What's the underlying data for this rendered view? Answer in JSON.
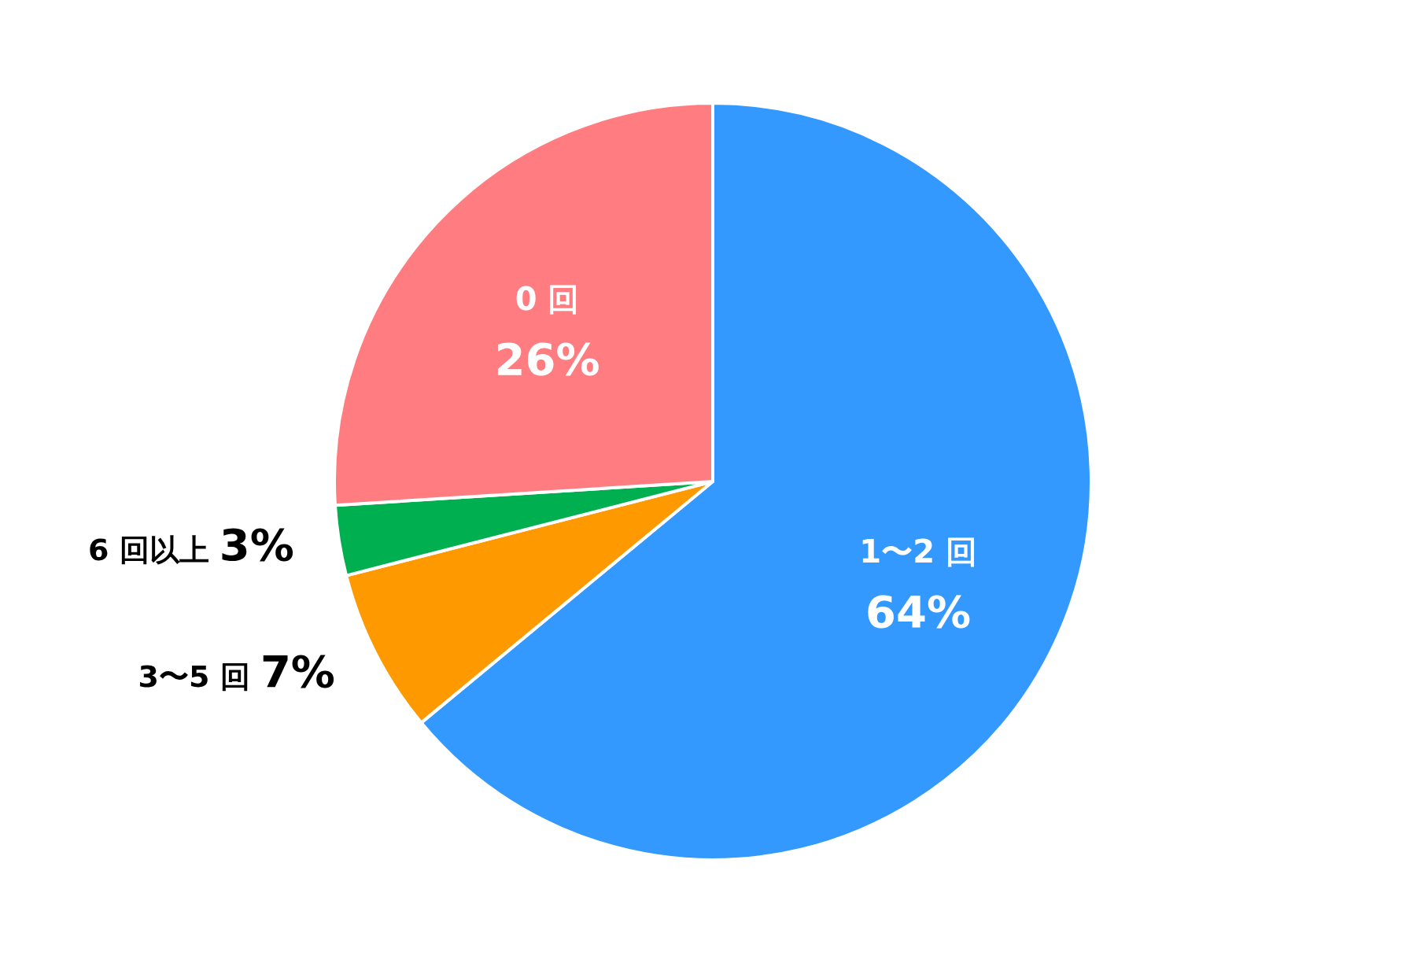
{
  "chart_data": {
    "type": "pie",
    "categories": [
      "1〜2 回",
      "3〜5 回",
      "6 回以上",
      "0 回"
    ],
    "values": [
      64,
      7,
      3,
      26
    ],
    "colors": [
      "#3399ff",
      "#ff9900",
      "#00b050",
      "#ff7c80"
    ],
    "value_labels": [
      "64%",
      "7%",
      "3%",
      "26%"
    ]
  }
}
